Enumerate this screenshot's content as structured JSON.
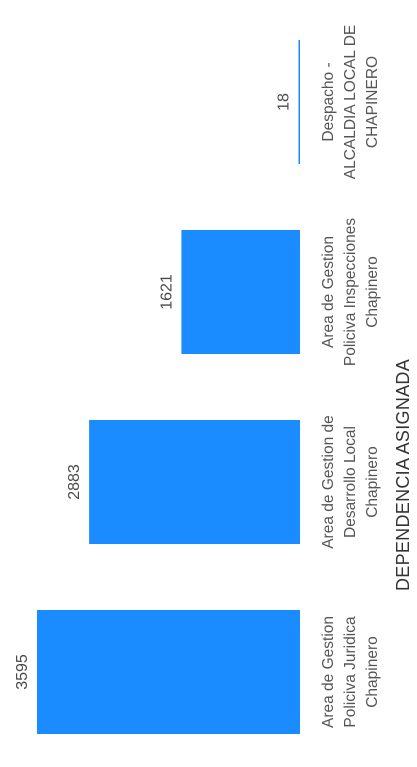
{
  "chart_data": {
    "type": "bar",
    "orientation": "rotated-90",
    "categories": [
      [
        "Area de Gestion",
        "Policiva Juridica",
        "Chapinero"
      ],
      [
        "Area de Gestion de",
        "Desarrollo Local",
        "Chapinero"
      ],
      [
        "Area de Gestion",
        "Policiva Inspecciones",
        "Chapinero"
      ],
      [
        "Despacho -",
        "ALCALDIA LOCAL DE",
        "CHAPINERO"
      ]
    ],
    "values": [
      3595,
      2883,
      1621,
      18
    ],
    "value_labels": [
      "3595",
      "2883",
      "1621",
      "18"
    ],
    "xlabel": "DEPENDENCIA ASIGNADA",
    "bar_color": "#1a8cff",
    "grid": false,
    "legend": "none"
  }
}
